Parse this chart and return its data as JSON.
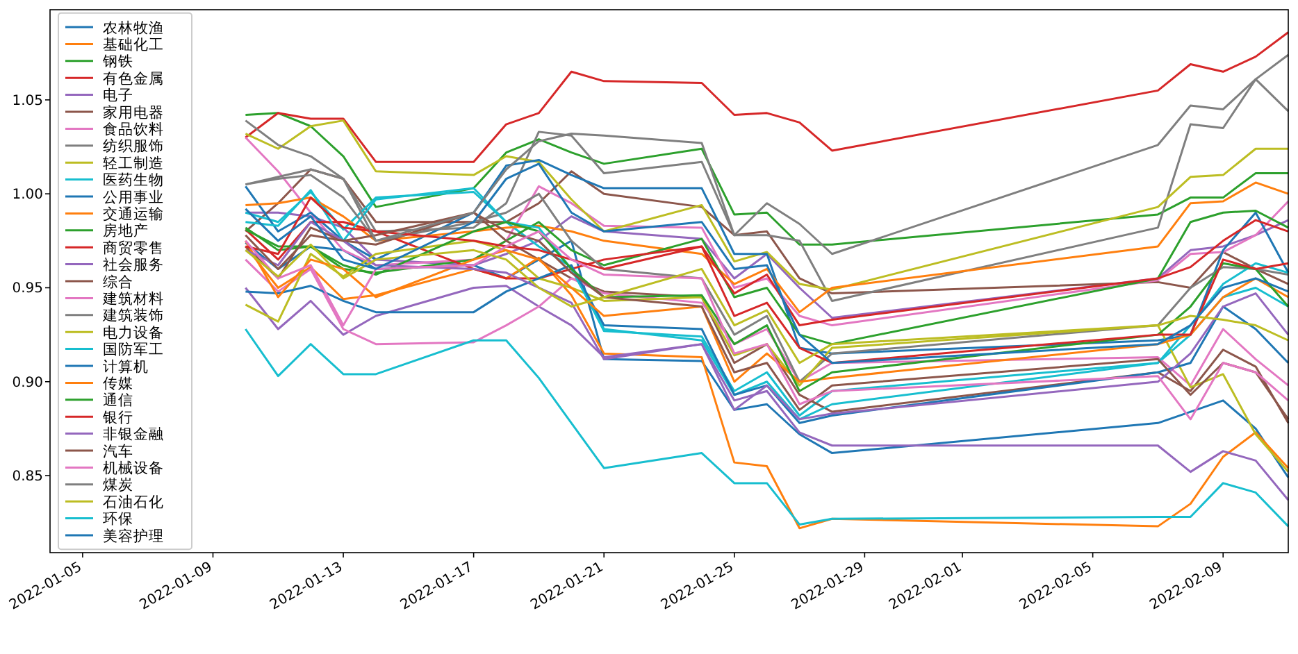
{
  "chart_data": {
    "type": "line",
    "x": [
      "2022-01-10",
      "2022-01-11",
      "2022-01-12",
      "2022-01-13",
      "2022-01-14",
      "2022-01-17",
      "2022-01-18",
      "2022-01-19",
      "2022-01-20",
      "2022-01-21",
      "2022-01-24",
      "2022-01-25",
      "2022-01-26",
      "2022-01-27",
      "2022-01-28",
      "2022-02-07",
      "2022-02-08",
      "2022-02-09",
      "2022-02-10",
      "2022-02-11"
    ],
    "xlim": [
      "2022-01-04",
      "2022-02-11"
    ],
    "xticks": [
      {
        "value": "2022-01-05",
        "label": "2022-01-05"
      },
      {
        "value": "2022-01-09",
        "label": "2022-01-09"
      },
      {
        "value": "2022-01-13",
        "label": "2022-01-13"
      },
      {
        "value": "2022-01-17",
        "label": "2022-01-17"
      },
      {
        "value": "2022-01-21",
        "label": "2022-01-21"
      },
      {
        "value": "2022-01-25",
        "label": "2022-01-25"
      },
      {
        "value": "2022-01-29",
        "label": "2022-01-29"
      },
      {
        "value": "2022-02-01",
        "label": "2022-02-01"
      },
      {
        "value": "2022-02-05",
        "label": "2022-02-05"
      },
      {
        "value": "2022-02-09",
        "label": "2022-02-09"
      }
    ],
    "ylim": [
      0.809,
      1.098
    ],
    "yticks": [
      {
        "value": 0.85,
        "label": "0.85"
      },
      {
        "value": 0.9,
        "label": "0.90"
      },
      {
        "value": 0.95,
        "label": "0.95"
      },
      {
        "value": 1.0,
        "label": "1.00"
      },
      {
        "value": 1.05,
        "label": "1.05"
      }
    ],
    "legend": "left",
    "series": [
      {
        "name": "农林牧渔",
        "color": "#1f77b4",
        "values": [
          0.974,
          0.96,
          0.972,
          0.97,
          0.96,
          0.962,
          0.955,
          0.965,
          0.975,
          0.912,
          0.911,
          0.885,
          0.888,
          0.872,
          0.862,
          0.878,
          0.884,
          0.89,
          0.875,
          0.849
        ]
      },
      {
        "name": "基础化工",
        "color": "#ff7f0e",
        "values": [
          0.972,
          0.95,
          0.961,
          0.944,
          0.946,
          0.96,
          0.955,
          0.966,
          0.946,
          0.915,
          0.913,
          0.857,
          0.855,
          0.822,
          0.827,
          0.823,
          0.835,
          0.86,
          0.873,
          0.854
        ]
      },
      {
        "name": "钢铁",
        "color": "#2ca02c",
        "values": [
          1.042,
          1.043,
          1.036,
          1.02,
          0.993,
          1.003,
          1.022,
          1.029,
          1.022,
          1.016,
          1.024,
          0.989,
          0.99,
          0.973,
          0.973,
          0.989,
          0.998,
          0.998,
          1.011,
          1.011
        ]
      },
      {
        "name": "有色金属",
        "color": "#d62728",
        "values": [
          1.03,
          1.043,
          1.04,
          1.04,
          1.017,
          1.017,
          1.037,
          1.043,
          1.065,
          1.06,
          1.059,
          1.042,
          1.043,
          1.038,
          1.023,
          1.055,
          1.069,
          1.065,
          1.073,
          1.086
        ]
      },
      {
        "name": "电子",
        "color": "#9467bd",
        "values": [
          0.99,
          0.99,
          0.988,
          0.982,
          0.965,
          0.962,
          0.968,
          0.975,
          0.988,
          0.98,
          0.976,
          0.955,
          0.968,
          0.95,
          0.934,
          0.955,
          0.97,
          0.972,
          0.978,
          0.986
        ]
      },
      {
        "name": "家用电器",
        "color": "#8c564b",
        "values": [
          0.98,
          0.995,
          1.013,
          1.008,
          0.985,
          0.985,
          0.985,
          0.995,
          1.012,
          1.0,
          0.993,
          0.978,
          0.98,
          0.955,
          0.947,
          0.953,
          0.95,
          0.969,
          0.96,
          0.952
        ]
      },
      {
        "name": "食品饮料",
        "color": "#e377c2",
        "values": [
          1.03,
          1.012,
          0.99,
          0.97,
          0.962,
          0.965,
          0.975,
          1.004,
          0.995,
          0.983,
          0.982,
          0.95,
          0.955,
          0.935,
          0.93,
          0.954,
          0.968,
          0.969,
          0.978,
          0.996
        ]
      },
      {
        "name": "纺织服饰",
        "color": "#7f7f7f",
        "values": [
          1.005,
          1.009,
          1.013,
          1.008,
          0.98,
          0.982,
          0.995,
          1.033,
          1.031,
          1.011,
          1.017,
          0.978,
          0.978,
          0.975,
          0.943,
          0.982,
          1.037,
          1.035,
          1.061,
          1.044
        ]
      },
      {
        "name": "轻工制造",
        "color": "#bcbd22",
        "values": [
          1.032,
          1.024,
          1.036,
          1.039,
          1.012,
          1.01,
          1.02,
          1.017,
          0.997,
          0.98,
          0.994,
          0.964,
          0.969,
          0.952,
          0.949,
          0.993,
          1.009,
          1.01,
          1.024,
          1.024
        ]
      },
      {
        "name": "医药生物",
        "color": "#17becf",
        "values": [
          0.99,
          0.985,
          1.001,
          0.981,
          0.998,
          1.001,
          0.985,
          0.972,
          0.961,
          0.927,
          0.924,
          0.895,
          0.905,
          0.882,
          0.895,
          0.91,
          0.925,
          0.945,
          0.95,
          0.94
        ]
      },
      {
        "name": "公用事业",
        "color": "#1f77b4",
        "values": [
          1.004,
          0.98,
          0.99,
          0.975,
          0.965,
          0.99,
          1.015,
          1.018,
          1.01,
          1.003,
          1.003,
          0.968,
          0.968,
          0.918,
          0.915,
          0.922,
          0.925,
          0.97,
          0.99,
          0.958
        ]
      },
      {
        "name": "交通运输",
        "color": "#ff7f0e",
        "values": [
          0.994,
          0.995,
          0.998,
          0.988,
          0.975,
          0.98,
          0.982,
          0.983,
          0.98,
          0.975,
          0.968,
          0.952,
          0.96,
          0.937,
          0.95,
          0.972,
          0.995,
          0.996,
          1.006,
          1.0
        ]
      },
      {
        "name": "房地产",
        "color": "#2ca02c",
        "values": [
          0.982,
          0.97,
          0.972,
          0.96,
          0.958,
          0.965,
          0.975,
          0.985,
          0.97,
          0.962,
          0.976,
          0.945,
          0.95,
          0.925,
          0.92,
          0.955,
          0.985,
          0.99,
          0.991,
          0.982
        ]
      },
      {
        "name": "商贸零售",
        "color": "#d62728",
        "values": [
          0.981,
          0.965,
          0.985,
          0.985,
          0.98,
          0.96,
          0.955,
          0.955,
          0.96,
          0.965,
          0.972,
          0.947,
          0.957,
          0.93,
          0.933,
          0.955,
          0.961,
          0.975,
          0.986,
          0.98
        ]
      },
      {
        "name": "社会服务",
        "color": "#9467bd",
        "values": [
          0.95,
          0.928,
          0.943,
          0.925,
          0.935,
          0.95,
          0.951,
          0.94,
          0.93,
          0.913,
          0.92,
          0.89,
          0.895,
          0.873,
          0.866,
          0.866,
          0.852,
          0.863,
          0.858,
          0.837
        ]
      },
      {
        "name": "综合",
        "color": "#8c564b",
        "values": [
          0.972,
          0.955,
          0.982,
          0.975,
          0.973,
          0.99,
          0.975,
          0.965,
          0.955,
          0.948,
          0.945,
          0.91,
          0.92,
          0.893,
          0.884,
          0.905,
          0.895,
          0.917,
          0.908,
          0.878
        ]
      },
      {
        "name": "建筑材料",
        "color": "#e377c2",
        "values": [
          0.965,
          0.948,
          0.96,
          0.928,
          0.92,
          0.921,
          0.93,
          0.94,
          0.955,
          0.947,
          0.942,
          0.92,
          0.928,
          0.9,
          0.91,
          0.913,
          0.898,
          0.928,
          0.912,
          0.898
        ]
      },
      {
        "name": "建筑装饰",
        "color": "#7f7f7f",
        "values": [
          1.005,
          1.008,
          1.01,
          0.998,
          0.975,
          0.985,
          0.99,
          1.0,
          0.975,
          0.96,
          0.955,
          0.925,
          0.935,
          0.9,
          0.915,
          0.93,
          0.95,
          0.961,
          0.96,
          0.957
        ]
      },
      {
        "name": "电力设备",
        "color": "#bcbd22",
        "values": [
          0.941,
          0.932,
          0.968,
          0.956,
          0.968,
          0.975,
          0.97,
          0.955,
          0.95,
          0.943,
          0.945,
          0.914,
          0.92,
          0.898,
          0.918,
          0.93,
          0.897,
          0.904,
          0.872,
          0.852
        ]
      },
      {
        "name": "国防军工",
        "color": "#17becf",
        "values": [
          0.985,
          0.983,
          1.002,
          0.975,
          0.997,
          1.003,
          0.985,
          0.982,
          0.96,
          0.928,
          0.922,
          0.893,
          0.9,
          0.88,
          0.888,
          0.91,
          0.93,
          0.952,
          0.963,
          0.958
        ]
      },
      {
        "name": "计算机",
        "color": "#1f77b4",
        "values": [
          0.948,
          0.947,
          0.951,
          0.943,
          0.937,
          0.937,
          0.948,
          0.955,
          0.962,
          0.93,
          0.928,
          0.893,
          0.898,
          0.878,
          0.882,
          0.905,
          0.91,
          0.94,
          0.928,
          0.91
        ]
      },
      {
        "name": "传媒",
        "color": "#ff7f0e",
        "values": [
          0.975,
          0.945,
          0.965,
          0.96,
          0.945,
          0.965,
          0.97,
          0.965,
          0.95,
          0.935,
          0.94,
          0.9,
          0.915,
          0.9,
          0.902,
          0.92,
          0.925,
          0.945,
          0.955,
          0.945
        ]
      },
      {
        "name": "通信",
        "color": "#2ca02c",
        "values": [
          0.981,
          0.972,
          0.972,
          0.962,
          0.957,
          0.98,
          0.985,
          0.98,
          0.96,
          0.945,
          0.946,
          0.92,
          0.93,
          0.895,
          0.905,
          0.925,
          0.94,
          0.963,
          0.96,
          0.94
        ]
      },
      {
        "name": "银行",
        "color": "#d62728",
        "values": [
          0.972,
          0.968,
          0.998,
          0.982,
          0.98,
          0.975,
          0.972,
          0.97,
          0.965,
          0.96,
          0.972,
          0.935,
          0.942,
          0.918,
          0.91,
          0.925,
          0.925,
          0.965,
          0.96,
          0.963
        ]
      },
      {
        "name": "非银金融",
        "color": "#9467bd",
        "values": [
          0.97,
          0.962,
          0.985,
          0.975,
          0.962,
          0.96,
          0.958,
          0.95,
          0.942,
          0.912,
          0.92,
          0.885,
          0.898,
          0.88,
          0.883,
          0.9,
          0.915,
          0.94,
          0.947,
          0.925
        ]
      },
      {
        "name": "汽车",
        "color": "#8c564b",
        "values": [
          0.978,
          0.96,
          0.978,
          0.975,
          0.978,
          0.99,
          0.98,
          0.975,
          0.958,
          0.945,
          0.94,
          0.905,
          0.91,
          0.885,
          0.898,
          0.912,
          0.893,
          0.91,
          0.905,
          0.88
        ]
      },
      {
        "name": "机械设备",
        "color": "#e377c2",
        "values": [
          0.975,
          0.955,
          0.962,
          0.93,
          0.96,
          0.962,
          0.972,
          0.98,
          0.965,
          0.957,
          0.955,
          0.915,
          0.92,
          0.888,
          0.895,
          0.903,
          0.88,
          0.91,
          0.905,
          0.89
        ]
      },
      {
        "name": "煤炭",
        "color": "#7f7f7f",
        "values": [
          1.039,
          1.026,
          1.02,
          1.008,
          0.975,
          0.99,
          1.013,
          1.028,
          1.032,
          1.031,
          1.027,
          0.978,
          0.995,
          0.984,
          0.968,
          1.026,
          1.047,
          1.045,
          1.061,
          1.074
        ]
      },
      {
        "name": "石油石化",
        "color": "#bcbd22",
        "values": [
          0.97,
          0.956,
          0.973,
          0.955,
          0.965,
          0.97,
          0.965,
          0.95,
          0.94,
          0.945,
          0.96,
          0.93,
          0.938,
          0.91,
          0.92,
          0.93,
          0.935,
          0.933,
          0.93,
          0.922
        ]
      },
      {
        "name": "环保",
        "color": "#17becf",
        "values": [
          0.928,
          0.903,
          0.92,
          0.904,
          0.904,
          0.922,
          0.922,
          0.902,
          0.878,
          0.854,
          0.862,
          0.846,
          0.846,
          0.824,
          0.827,
          0.828,
          0.828,
          0.846,
          0.841,
          0.823
        ]
      },
      {
        "name": "美容护理",
        "color": "#1f77b4",
        "values": [
          0.992,
          0.975,
          0.988,
          0.965,
          0.96,
          0.985,
          1.008,
          1.016,
          0.99,
          0.98,
          0.985,
          0.96,
          0.962,
          0.925,
          0.91,
          0.92,
          0.93,
          0.95,
          0.955,
          0.948
        ]
      }
    ]
  }
}
